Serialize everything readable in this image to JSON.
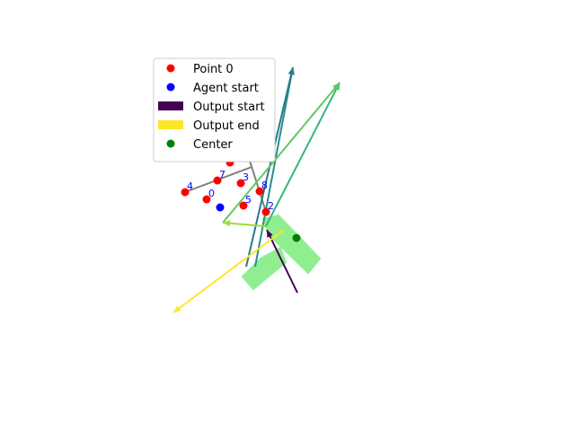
{
  "chart_data": {
    "type": "scatter",
    "title": "",
    "xlabel": "",
    "ylabel": "",
    "axes_visible": false,
    "xlim": [
      0,
      640
    ],
    "ylim": [
      480,
      0
    ],
    "legend": {
      "placement": "upper-left",
      "entries": [
        {
          "label": "Point 0",
          "kind": "dot",
          "color": "#ff0000"
        },
        {
          "label": "Agent start",
          "kind": "dot",
          "color": "#0000ff"
        },
        {
          "label": "Output start",
          "kind": "rect",
          "color": "#440154"
        },
        {
          "label": "Output end",
          "kind": "rect",
          "color": "#fde725"
        },
        {
          "label": "Center",
          "kind": "dot",
          "color": "#008000"
        }
      ]
    },
    "points": [
      {
        "label": "0",
        "x": 230,
        "y": 222
      },
      {
        "label": "1",
        "x": 272,
        "y": 160
      },
      {
        "label": "2",
        "x": 296,
        "y": 236
      },
      {
        "label": "3",
        "x": 268,
        "y": 204
      },
      {
        "label": "4",
        "x": 206,
        "y": 214
      },
      {
        "label": "5",
        "x": 271,
        "y": 229
      },
      {
        "label": "6",
        "x": 256,
        "y": 181
      },
      {
        "label": "7",
        "x": 242,
        "y": 201
      },
      {
        "label": "8",
        "x": 289,
        "y": 213
      }
    ],
    "agent_start": {
      "x": 245,
      "y": 231
    },
    "center": {
      "x": 330,
      "y": 265
    },
    "gray_path": [
      [
        206,
        214
      ],
      [
        280,
        186
      ],
      [
        272,
        160
      ],
      [
        296,
        236
      ]
    ],
    "region_color": "#90ee90",
    "region_polygons": [
      [
        [
          293,
          244
        ],
        [
          310,
          240
        ],
        [
          356,
          288
        ],
        [
          343,
          304
        ],
        [
          300,
          262
        ]
      ],
      [
        [
          270,
          308
        ],
        [
          290,
          288
        ],
        [
          312,
          276
        ],
        [
          318,
          292
        ],
        [
          282,
          322
        ]
      ]
    ],
    "arrows": [
      {
        "from": [
          331,
          326
        ],
        "to": [
          297,
          256
        ],
        "color": "#440154"
      },
      {
        "from": [
          284,
          297
        ],
        "to": [
          326,
          75
        ],
        "color": "#21918c"
      },
      {
        "from": [
          274,
          297
        ],
        "to": [
          326,
          75
        ],
        "color": "#2a788e"
      },
      {
        "from": [
          296,
          252
        ],
        "to": [
          378,
          92
        ],
        "color": "#35b779"
      },
      {
        "from": [
          248,
          248
        ],
        "to": [
          378,
          92
        ],
        "color": "#5ec962"
      },
      {
        "from": [
          296,
          252
        ],
        "to": [
          248,
          248
        ],
        "color": "#a0da39"
      },
      {
        "from": [
          316,
          256
        ],
        "to": [
          193,
          348
        ],
        "color": "#fde725"
      }
    ]
  }
}
